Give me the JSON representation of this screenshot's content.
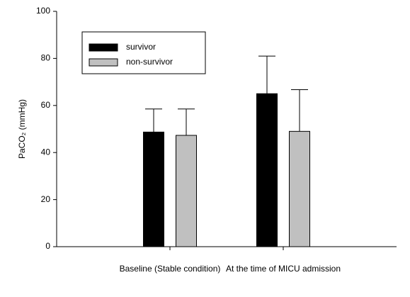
{
  "chart_data": {
    "type": "bar",
    "y_label": "PaCO₂ (mmHg)",
    "categories": [
      "Baseline (Stable condition)",
      "At the time of MICU admission"
    ],
    "series": [
      {
        "name": "survivor",
        "color": "#000000",
        "values": [
          48.7,
          65
        ],
        "errors": [
          9.8,
          16
        ]
      },
      {
        "name": "non-survivor",
        "color": "#c0c0c0",
        "values": [
          47.3,
          49
        ],
        "errors": [
          11.2,
          17.7
        ]
      }
    ],
    "ylim": [
      0,
      100
    ],
    "yticks": [
      0,
      20,
      40,
      60,
      80,
      100
    ]
  }
}
